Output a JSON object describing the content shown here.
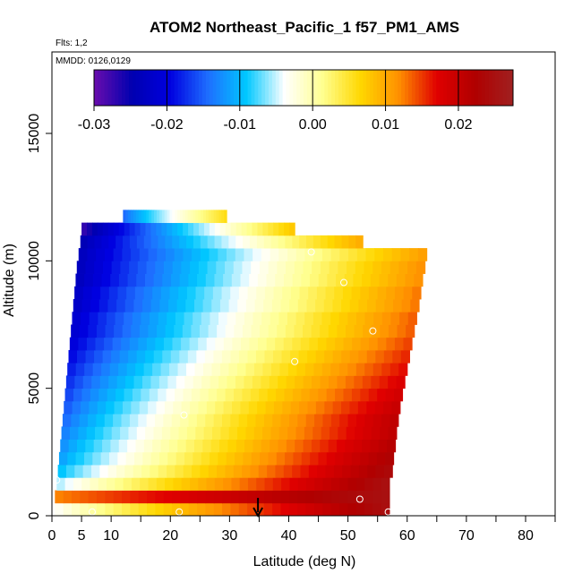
{
  "chart_data": {
    "type": "heatmap",
    "title": "ATOM2 Northeast_Pacific_1 f57_PM1_AMS",
    "flights_label": "Flts: 1,2",
    "mmdd_label": "MMDD: 0126,0129",
    "xlabel": "Latitude (deg N)",
    "ylabel": "Altitude (m)",
    "xlim": [
      0,
      85
    ],
    "ylim": [
      0,
      17500
    ],
    "x_ticks": [
      0,
      5,
      10,
      20,
      30,
      40,
      50,
      60,
      70,
      80
    ],
    "x_tick_labels": [
      "0",
      "5",
      "10",
      "20",
      "30",
      "40",
      "50",
      "60",
      "70",
      "80"
    ],
    "x_minor_ticks": [
      15,
      25,
      35,
      45,
      55,
      65,
      75,
      85
    ],
    "y_ticks": [
      0,
      5000,
      10000,
      15000
    ],
    "y_tick_labels": [
      "0",
      "5000",
      "10000",
      "15000"
    ],
    "colorbar": {
      "range": [
        -0.03,
        0.0275
      ],
      "ticks": [
        -0.03,
        -0.02,
        -0.01,
        0.0,
        0.01,
        0.02
      ],
      "tick_labels": [
        "-0.03",
        "-0.02",
        "-0.01",
        "0.00",
        "0.01",
        "0.02"
      ],
      "colors": [
        "#6a0dad",
        "#0000b0",
        "#0000e0",
        "#1e6fff",
        "#00c8ff",
        "#ffffff",
        "#ffff90",
        "#ffd700",
        "#ff9000",
        "#e00000",
        "#b00000",
        "#a02020"
      ]
    },
    "layers": [
      {
        "alt": 0,
        "lat_min": 0.5,
        "lat_max": 57,
        "v_left": -0.004,
        "v_right": 0.025
      },
      {
        "alt": 500,
        "lat_min": 0.5,
        "lat_max": 57,
        "v_left": 0.012,
        "v_right": 0.025
      },
      {
        "alt": 1000,
        "lat_min": 0.8,
        "lat_max": 57,
        "v_left": -0.006,
        "v_right": 0.025
      },
      {
        "alt": 1500,
        "lat_min": 1,
        "lat_max": 57.5,
        "v_left": -0.01,
        "v_right": 0.024
      },
      {
        "alt": 2000,
        "lat_min": 1.2,
        "lat_max": 57.7,
        "v_left": -0.012,
        "v_right": 0.023
      },
      {
        "alt": 2500,
        "lat_min": 1.4,
        "lat_max": 58,
        "v_left": -0.013,
        "v_right": 0.022
      },
      {
        "alt": 3000,
        "lat_min": 1.6,
        "lat_max": 58.2,
        "v_left": -0.014,
        "v_right": 0.021
      },
      {
        "alt": 3500,
        "lat_min": 1.8,
        "lat_max": 58.5,
        "v_left": -0.015,
        "v_right": 0.021
      },
      {
        "alt": 4000,
        "lat_min": 2.0,
        "lat_max": 58.8,
        "v_left": -0.016,
        "v_right": 0.02
      },
      {
        "alt": 4500,
        "lat_min": 2.2,
        "lat_max": 59.2,
        "v_left": -0.017,
        "v_right": 0.019
      },
      {
        "alt": 5000,
        "lat_min": 2.4,
        "lat_max": 59.6,
        "v_left": -0.018,
        "v_right": 0.018
      },
      {
        "alt": 5500,
        "lat_min": 2.6,
        "lat_max": 60,
        "v_left": -0.019,
        "v_right": 0.017
      },
      {
        "alt": 6000,
        "lat_min": 2.8,
        "lat_max": 60.4,
        "v_left": -0.02,
        "v_right": 0.016
      },
      {
        "alt": 6500,
        "lat_min": 3.0,
        "lat_max": 60.8,
        "v_left": -0.021,
        "v_right": 0.015
      },
      {
        "alt": 7000,
        "lat_min": 3.2,
        "lat_max": 61.2,
        "v_left": -0.022,
        "v_right": 0.014
      },
      {
        "alt": 7500,
        "lat_min": 3.4,
        "lat_max": 61.6,
        "v_left": -0.022,
        "v_right": 0.014
      },
      {
        "alt": 8000,
        "lat_min": 3.6,
        "lat_max": 62,
        "v_left": -0.023,
        "v_right": 0.013
      },
      {
        "alt": 8500,
        "lat_min": 3.8,
        "lat_max": 62.3,
        "v_left": -0.023,
        "v_right": 0.013
      },
      {
        "alt": 9000,
        "lat_min": 4.0,
        "lat_max": 62.6,
        "v_left": -0.024,
        "v_right": 0.012
      },
      {
        "alt": 9500,
        "lat_min": 4.2,
        "lat_max": 63,
        "v_left": -0.024,
        "v_right": 0.012
      },
      {
        "alt": 10000,
        "lat_min": 4.5,
        "lat_max": 63.3,
        "v_left": -0.024,
        "v_right": 0.011
      },
      {
        "alt": 10500,
        "lat_min": 4.8,
        "lat_max": 52.5,
        "v_left": -0.025,
        "v_right": 0.01
      },
      {
        "alt": 11000,
        "lat_min": 5.0,
        "lat_max": 41,
        "v_left": -0.028,
        "v_right": 0.008
      },
      {
        "alt": 11500,
        "lat_min": 12,
        "lat_max": 29.5,
        "v_left": -0.015,
        "v_right": 0.006
      }
    ],
    "markers": [
      {
        "lat": 6.8,
        "alt": 150
      },
      {
        "lat": 21.5,
        "alt": 150
      },
      {
        "lat": 56.8,
        "alt": 150
      },
      {
        "lat": 52,
        "alt": 650
      },
      {
        "lat": 0.8,
        "alt": 1400
      },
      {
        "lat": 22.3,
        "alt": 3950
      },
      {
        "lat": 41,
        "alt": 6050
      },
      {
        "lat": 54.2,
        "alt": 7250
      },
      {
        "lat": 49.3,
        "alt": 9150
      },
      {
        "lat": 43.8,
        "alt": 10350
      },
      {
        "lat": 4.3,
        "alt": 11250
      }
    ],
    "arrow": {
      "lat": 34.8,
      "alt_top": 700,
      "alt_bottom": 0
    },
    "grid": false,
    "legend": "colorbar top"
  }
}
